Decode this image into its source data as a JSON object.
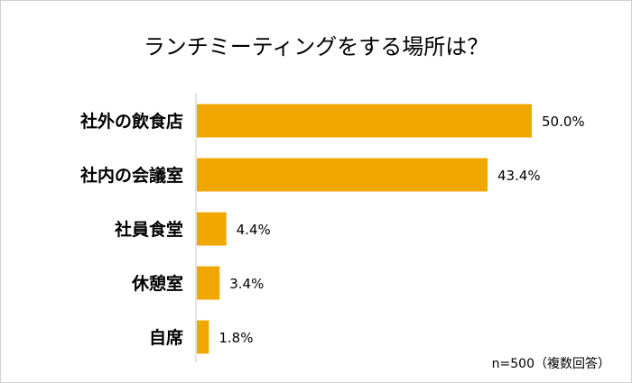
{
  "chart_data": {
    "type": "bar",
    "orientation": "horizontal",
    "title": "ランチミーティングをする場所は？",
    "categories": [
      "社外の飲食店",
      "社内の会議室",
      "社員食堂",
      "休憩室",
      "自席"
    ],
    "values": [
      50.0,
      43.4,
      4.4,
      3.4,
      1.8
    ],
    "value_labels": [
      "50.0%",
      "43.4%",
      "4.4%",
      "3.4%",
      "1.8%"
    ],
    "xlim": [
      0,
      50
    ],
    "grid": false,
    "bar_color": "#F0A800",
    "note": "n=500（複数回答）"
  }
}
